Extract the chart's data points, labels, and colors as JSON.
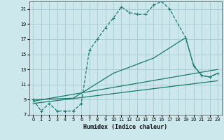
{
  "xlabel": "Humidex (Indice chaleur)",
  "bg_color": "#cce8ec",
  "grid_color": "#aacdd4",
  "line_color": "#1a7a6e",
  "xlim": [
    -0.5,
    23.5
  ],
  "ylim": [
    7,
    22
  ],
  "xticks": [
    0,
    1,
    2,
    3,
    4,
    5,
    6,
    7,
    8,
    9,
    10,
    11,
    12,
    13,
    14,
    15,
    16,
    17,
    18,
    19,
    20,
    21,
    22,
    23
  ],
  "yticks": [
    7,
    9,
    11,
    13,
    15,
    17,
    19,
    21
  ],
  "series1_x": [
    0,
    1,
    2,
    3,
    4,
    5,
    6,
    7,
    8,
    9,
    10,
    11,
    12,
    13,
    14,
    15,
    16,
    17,
    19,
    20,
    21,
    22,
    23
  ],
  "series1_y": [
    9,
    7.5,
    8.5,
    7.5,
    7.5,
    7.5,
    8.5,
    15.5,
    17.0,
    18.5,
    19.8,
    21.3,
    20.5,
    20.3,
    20.3,
    21.5,
    22.0,
    21.0,
    17.2,
    13.5,
    12.2,
    12.0,
    12.5
  ],
  "series2_x": [
    0,
    5,
    10,
    15,
    19,
    20,
    21,
    22,
    23
  ],
  "series2_y": [
    9.0,
    9.2,
    12.5,
    14.5,
    17.2,
    13.5,
    12.2,
    12.0,
    12.5
  ],
  "series3_x": [
    0,
    23
  ],
  "series3_y": [
    8.8,
    13.0
  ],
  "series4_x": [
    0,
    23
  ],
  "series4_y": [
    8.5,
    11.5
  ]
}
